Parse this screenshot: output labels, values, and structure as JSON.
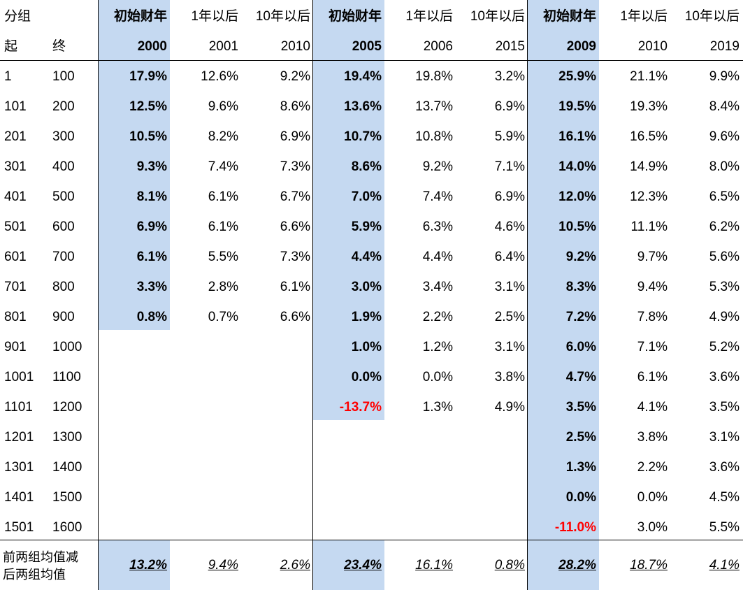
{
  "groups": [
    {
      "label": "初始财年",
      "year": "2000",
      "after1_label": "1年以后",
      "after1_year": "2001",
      "after10_label": "10年以后",
      "after10_year": "2010"
    },
    {
      "label": "初始财年",
      "year": "2005",
      "after1_label": "1年以后",
      "after1_year": "2006",
      "after10_label": "10年以后",
      "after10_year": "2015"
    },
    {
      "label": "初始财年",
      "year": "2009",
      "after1_label": "1年以后",
      "after1_year": "2010",
      "after10_label": "10年以后",
      "after10_year": "2019"
    }
  ],
  "header": {
    "group_label": "分组",
    "start_label": "起",
    "end_label": "终"
  },
  "rows": [
    {
      "start": "1",
      "end": "100",
      "v": [
        "17.9%",
        "12.6%",
        "9.2%",
        "19.4%",
        "19.8%",
        "3.2%",
        "25.9%",
        "21.1%",
        "9.9%"
      ]
    },
    {
      "start": "101",
      "end": "200",
      "v": [
        "12.5%",
        "9.6%",
        "8.6%",
        "13.6%",
        "13.7%",
        "6.9%",
        "19.5%",
        "19.3%",
        "8.4%"
      ]
    },
    {
      "start": "201",
      "end": "300",
      "v": [
        "10.5%",
        "8.2%",
        "6.9%",
        "10.7%",
        "10.8%",
        "5.9%",
        "16.1%",
        "16.5%",
        "9.6%"
      ]
    },
    {
      "start": "301",
      "end": "400",
      "v": [
        "9.3%",
        "7.4%",
        "7.3%",
        "8.6%",
        "9.2%",
        "7.1%",
        "14.0%",
        "14.9%",
        "8.0%"
      ]
    },
    {
      "start": "401",
      "end": "500",
      "v": [
        "8.1%",
        "6.1%",
        "6.7%",
        "7.0%",
        "7.4%",
        "6.9%",
        "12.0%",
        "12.3%",
        "6.5%"
      ]
    },
    {
      "start": "501",
      "end": "600",
      "v": [
        "6.9%",
        "6.1%",
        "6.6%",
        "5.9%",
        "6.3%",
        "4.6%",
        "10.5%",
        "11.1%",
        "6.2%"
      ]
    },
    {
      "start": "601",
      "end": "700",
      "v": [
        "6.1%",
        "5.5%",
        "7.3%",
        "4.4%",
        "4.4%",
        "6.4%",
        "9.2%",
        "9.7%",
        "5.6%"
      ]
    },
    {
      "start": "701",
      "end": "800",
      "v": [
        "3.3%",
        "2.8%",
        "6.1%",
        "3.0%",
        "3.4%",
        "3.1%",
        "8.3%",
        "9.4%",
        "5.3%"
      ]
    },
    {
      "start": "801",
      "end": "900",
      "v": [
        "0.8%",
        "0.7%",
        "6.6%",
        "1.9%",
        "2.2%",
        "2.5%",
        "7.2%",
        "7.8%",
        "4.9%"
      ]
    },
    {
      "start": "901",
      "end": "1000",
      "v": [
        "",
        "",
        "",
        "1.0%",
        "1.2%",
        "3.1%",
        "6.0%",
        "7.1%",
        "5.2%"
      ]
    },
    {
      "start": "1001",
      "end": "1100",
      "v": [
        "",
        "",
        "",
        "0.0%",
        "0.0%",
        "3.8%",
        "4.7%",
        "6.1%",
        "3.6%"
      ]
    },
    {
      "start": "1101",
      "end": "1200",
      "v": [
        "",
        "",
        "",
        "-13.7%",
        "1.3%",
        "4.9%",
        "3.5%",
        "4.1%",
        "3.5%"
      ]
    },
    {
      "start": "1201",
      "end": "1300",
      "v": [
        "",
        "",
        "",
        "",
        "",
        "",
        "2.5%",
        "3.8%",
        "3.1%"
      ]
    },
    {
      "start": "1301",
      "end": "1400",
      "v": [
        "",
        "",
        "",
        "",
        "",
        "",
        "1.3%",
        "2.2%",
        "3.6%"
      ]
    },
    {
      "start": "1401",
      "end": "1500",
      "v": [
        "",
        "",
        "",
        "",
        "",
        "",
        "0.0%",
        "0.0%",
        "4.5%"
      ]
    },
    {
      "start": "1501",
      "end": "1600",
      "v": [
        "",
        "",
        "",
        "",
        "",
        "",
        "-11.0%",
        "3.0%",
        "5.5%"
      ]
    }
  ],
  "footer": {
    "label_line1": "前两组均值减",
    "label_line2": "后两组均值",
    "values": [
      "13.2%",
      "9.4%",
      "2.6%",
      "23.4%",
      "16.1%",
      "0.8%",
      "28.2%",
      "18.7%",
      "4.1%"
    ]
  },
  "colors": {
    "highlight": "#c5d9f1",
    "negative": "#ff0000"
  }
}
